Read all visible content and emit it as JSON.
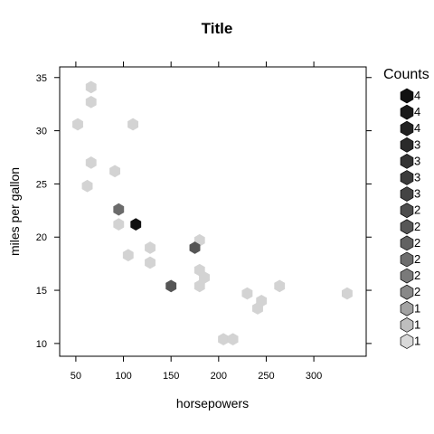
{
  "chart_data": {
    "type": "hexbin",
    "title": "Title",
    "xlabel": "horsepowers",
    "ylabel": "miles per gallon",
    "xlim": [
      33,
      355
    ],
    "ylim": [
      8.8,
      36
    ],
    "x_ticks": [
      50,
      100,
      150,
      200,
      250,
      300
    ],
    "x_tick_labels": [
      "50",
      "100",
      "150",
      "200",
      "250",
      "300"
    ],
    "y_ticks": [
      10,
      15,
      20,
      25,
      30,
      35
    ],
    "y_tick_labels": [
      "10",
      "15",
      "20",
      "25",
      "30",
      "35"
    ],
    "grid": false,
    "legend_position": "right",
    "legend": {
      "title": "Counts",
      "labels": [
        "4",
        "4",
        "4",
        "3",
        "3",
        "3",
        "3",
        "2",
        "2",
        "2",
        "2",
        "2",
        "2",
        "1",
        "1",
        "1"
      ],
      "colors": [
        "#111111",
        "#1a1a1a",
        "#222222",
        "#2a2a2a",
        "#333333",
        "#3b3b3b",
        "#444444",
        "#4d4d4d",
        "#575757",
        "#626262",
        "#6d6d6d",
        "#7a7a7a",
        "#888888",
        "#a3a3a3",
        "#bebebe",
        "#d9d9d9"
      ]
    },
    "count_colors": {
      "1": "#d3d3d3",
      "2": "#6b6b6b",
      "3": "#555555",
      "4": "#111111"
    },
    "points": [
      {
        "x": 66,
        "y": 34.1,
        "count": 1
      },
      {
        "x": 66,
        "y": 32.7,
        "count": 1
      },
      {
        "x": 52,
        "y": 30.6,
        "count": 1
      },
      {
        "x": 110,
        "y": 30.6,
        "count": 1
      },
      {
        "x": 66,
        "y": 27.0,
        "count": 1
      },
      {
        "x": 91,
        "y": 26.2,
        "count": 1
      },
      {
        "x": 62,
        "y": 24.8,
        "count": 1
      },
      {
        "x": 95,
        "y": 22.6,
        "count": 2
      },
      {
        "x": 95,
        "y": 21.2,
        "count": 1
      },
      {
        "x": 113,
        "y": 21.2,
        "count": 4
      },
      {
        "x": 180,
        "y": 19.7,
        "count": 1
      },
      {
        "x": 175,
        "y": 19.0,
        "count": 3
      },
      {
        "x": 128,
        "y": 19.0,
        "count": 1
      },
      {
        "x": 105,
        "y": 18.3,
        "count": 1
      },
      {
        "x": 128,
        "y": 17.6,
        "count": 1
      },
      {
        "x": 180,
        "y": 16.9,
        "count": 1
      },
      {
        "x": 185,
        "y": 16.2,
        "count": 1
      },
      {
        "x": 150,
        "y": 15.4,
        "count": 3
      },
      {
        "x": 180,
        "y": 15.4,
        "count": 1
      },
      {
        "x": 264,
        "y": 15.4,
        "count": 1
      },
      {
        "x": 230,
        "y": 14.7,
        "count": 1
      },
      {
        "x": 335,
        "y": 14.7,
        "count": 1
      },
      {
        "x": 245,
        "y": 14.0,
        "count": 1
      },
      {
        "x": 241,
        "y": 13.3,
        "count": 1
      },
      {
        "x": 205,
        "y": 10.4,
        "count": 1
      },
      {
        "x": 215,
        "y": 10.4,
        "count": 1
      }
    ]
  }
}
